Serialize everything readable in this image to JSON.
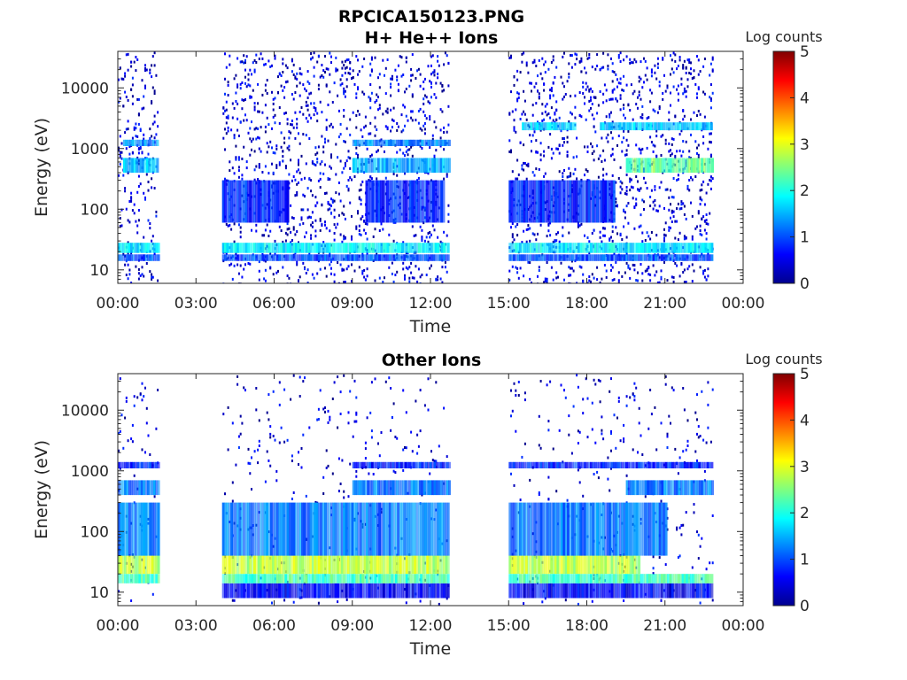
{
  "figure": {
    "title": "RPCICA150123.PNG"
  },
  "chart_data": [
    {
      "type": "heatmap",
      "title": "H+ He++ Ions",
      "xlabel": "Time",
      "ylabel": "Energy (eV)",
      "x_ticks": [
        "00:00",
        "03:00",
        "06:00",
        "09:00",
        "12:00",
        "15:00",
        "18:00",
        "21:00",
        "00:00"
      ],
      "xlim_hours": [
        0,
        24
      ],
      "y_ticks": [
        "10",
        "100",
        "1000",
        "10000"
      ],
      "y_scale": "log",
      "ylim": [
        6,
        40000
      ],
      "colorbar": {
        "label": "Log counts",
        "ticks": [
          "0",
          "1",
          "2",
          "3",
          "4",
          "5"
        ],
        "range": [
          0,
          5
        ],
        "colormap": "jet"
      },
      "data_intervals_hours": [
        [
          0.0,
          1.55
        ],
        [
          4.0,
          12.7
        ],
        [
          15.0,
          22.8
        ]
      ],
      "features": [
        {
          "energy_range_eV": [
            14,
            18
          ],
          "log_counts": 1.0,
          "hours": [
            [
              0,
              1.55
            ],
            [
              4.0,
              12.7
            ],
            [
              15.0,
              22.8
            ]
          ]
        },
        {
          "energy_range_eV": [
            19,
            28
          ],
          "log_counts": 1.8,
          "hours": [
            [
              0,
              1.55
            ],
            [
              4.0,
              12.7
            ],
            [
              15.0,
              22.8
            ]
          ]
        },
        {
          "energy_range_eV": [
            60,
            300
          ],
          "log_counts": 0.8,
          "hours": [
            [
              4.0,
              6.5
            ],
            [
              9.5,
              12.5
            ],
            [
              15.0,
              19.0
            ]
          ]
        },
        {
          "energy_range_eV": [
            400,
            700
          ],
          "log_counts": 1.5,
          "hours": [
            [
              0.2,
              1.5
            ],
            [
              9.0,
              12.7
            ]
          ]
        },
        {
          "energy_range_eV": [
            1100,
            1400
          ],
          "log_counts": 1.3,
          "hours": [
            [
              0.2,
              1.5
            ],
            [
              9.0,
              12.7
            ]
          ]
        },
        {
          "energy_range_eV": [
            400,
            700
          ],
          "log_counts": 2.4,
          "hours": [
            [
              19.5,
              22.8
            ]
          ]
        },
        {
          "energy_range_eV": [
            2000,
            2700
          ],
          "log_counts": 1.6,
          "hours": [
            [
              15.5,
              17.5
            ],
            [
              18.5,
              22.8
            ]
          ]
        }
      ]
    },
    {
      "type": "heatmap",
      "title": "Other Ions",
      "xlabel": "Time",
      "ylabel": "Energy (eV)",
      "x_ticks": [
        "00:00",
        "03:00",
        "06:00",
        "09:00",
        "12:00",
        "15:00",
        "18:00",
        "21:00",
        "00:00"
      ],
      "xlim_hours": [
        0,
        24
      ],
      "y_ticks": [
        "10",
        "100",
        "1000",
        "10000"
      ],
      "y_scale": "log",
      "ylim": [
        6,
        40000
      ],
      "colorbar": {
        "label": "Log counts",
        "ticks": [
          "0",
          "1",
          "2",
          "3",
          "4",
          "5"
        ],
        "range": [
          0,
          5
        ],
        "colormap": "jet"
      },
      "data_intervals_hours": [
        [
          0.0,
          1.55
        ],
        [
          4.0,
          12.7
        ],
        [
          15.0,
          22.8
        ]
      ],
      "features": [
        {
          "energy_range_eV": [
            8,
            14
          ],
          "log_counts": 0.6,
          "hours": [
            [
              4.0,
              12.7
            ],
            [
              15.0,
              22.8
            ]
          ]
        },
        {
          "energy_range_eV": [
            14,
            20
          ],
          "log_counts": 2.2,
          "hours": [
            [
              0,
              1.55
            ],
            [
              4.0,
              12.7
            ],
            [
              15.0,
              22.8
            ]
          ]
        },
        {
          "energy_range_eV": [
            20,
            40
          ],
          "log_counts": 2.8,
          "hours": [
            [
              0,
              1.55
            ],
            [
              4.0,
              12.7
            ],
            [
              15.0,
              20.0
            ]
          ]
        },
        {
          "energy_range_eV": [
            40,
            300
          ],
          "log_counts": 1.2,
          "hours": [
            [
              0,
              1.55
            ],
            [
              4.0,
              12.7
            ],
            [
              15.0,
              21.0
            ]
          ]
        },
        {
          "energy_range_eV": [
            400,
            700
          ],
          "log_counts": 1.2,
          "hours": [
            [
              0,
              1.55
            ],
            [
              9.0,
              12.7
            ],
            [
              19.5,
              22.8
            ]
          ]
        },
        {
          "energy_range_eV": [
            1100,
            1400
          ],
          "log_counts": 0.8,
          "hours": [
            [
              0,
              1.55
            ],
            [
              9.0,
              12.7
            ],
            [
              15.0,
              22.8
            ]
          ]
        }
      ]
    }
  ]
}
